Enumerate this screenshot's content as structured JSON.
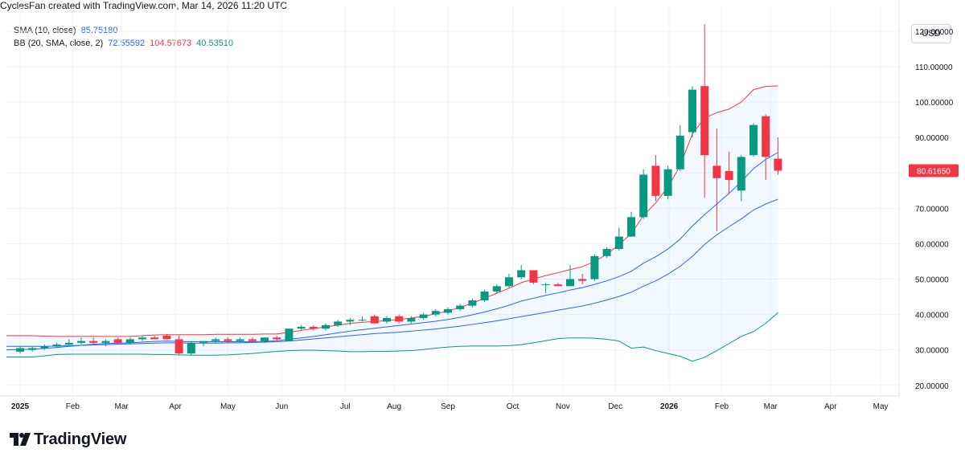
{
  "header": {
    "attribution": "CyclesFan created with TradingView.com, Mar 14, 2026 11:20 UTC"
  },
  "indicators": {
    "sma": {
      "name": "SMA (10, close)",
      "value": "85.75180",
      "color": "#2962ff"
    },
    "bb": {
      "name": "BB (20, SMA, close, 2)",
      "basis": "72.55592",
      "upper": "104.57673",
      "lower": "40.53510",
      "basis_color": "#2962ff",
      "upper_color": "#f23645",
      "lower_color": "#089981"
    }
  },
  "currency_button": "USD",
  "footer": {
    "brand": "TradingView"
  },
  "chart_data": {
    "type": "candlestick",
    "interval": "weekly",
    "ylim": [
      17,
      127
    ],
    "y_ticks": [
      20,
      30,
      40,
      50,
      60,
      70,
      80,
      90,
      100,
      110,
      120
    ],
    "y_tick_labels": [
      "20.00000",
      "30.00000",
      "40.00000",
      "50.00000",
      "60.00000",
      "70.00000",
      "80.00000",
      "90.00000",
      "100.00000",
      "110.00000",
      "120.00000"
    ],
    "x_ticks": [
      {
        "label": "2025",
        "week": 0,
        "bold": true
      },
      {
        "label": "Feb",
        "week": 4.3
      },
      {
        "label": "Mar",
        "week": 8.3
      },
      {
        "label": "Apr",
        "week": 12.7
      },
      {
        "label": "May",
        "week": 17.0
      },
      {
        "label": "Jun",
        "week": 21.4
      },
      {
        "label": "Jul",
        "week": 26.6
      },
      {
        "label": "Aug",
        "week": 30.6
      },
      {
        "label": "Sep",
        "week": 35.0
      },
      {
        "label": "Oct",
        "week": 40.3
      },
      {
        "label": "Nov",
        "week": 44.4
      },
      {
        "label": "Dec",
        "week": 48.7
      },
      {
        "label": "2026",
        "week": 53.1,
        "bold": true
      },
      {
        "label": "Feb",
        "week": 57.4
      },
      {
        "label": "Mar",
        "week": 61.4
      },
      {
        "label": "Apr",
        "week": 66.3
      },
      {
        "label": "May",
        "week": 70.4
      }
    ],
    "last_price": {
      "value": 80.6165,
      "label": "80.61650",
      "color": "#f23645"
    },
    "candles": [
      {
        "o": 29.5,
        "h": 31.0,
        "l": 29.0,
        "c": 30.5
      },
      {
        "o": 30.0,
        "h": 31.0,
        "l": 29.5,
        "c": 30.5
      },
      {
        "o": 30.5,
        "h": 31.5,
        "l": 30.0,
        "c": 31.0
      },
      {
        "o": 31.0,
        "h": 32.0,
        "l": 30.5,
        "c": 31.5
      },
      {
        "o": 31.5,
        "h": 33.0,
        "l": 31.0,
        "c": 32.0
      },
      {
        "o": 32.0,
        "h": 33.5,
        "l": 31.5,
        "c": 32.5
      },
      {
        "o": 32.5,
        "h": 33.5,
        "l": 31.5,
        "c": 32.0
      },
      {
        "o": 32.0,
        "h": 33.0,
        "l": 31.0,
        "c": 32.5
      },
      {
        "o": 33.0,
        "h": 33.5,
        "l": 31.5,
        "c": 32.0
      },
      {
        "o": 32.0,
        "h": 33.5,
        "l": 31.5,
        "c": 33.0
      },
      {
        "o": 33.0,
        "h": 34.0,
        "l": 32.5,
        "c": 33.5
      },
      {
        "o": 33.5,
        "h": 34.0,
        "l": 33.0,
        "c": 33.0
      },
      {
        "o": 34.0,
        "h": 34.5,
        "l": 33.0,
        "c": 33.0
      },
      {
        "o": 33.0,
        "h": 34.0,
        "l": 28.5,
        "c": 29.0
      },
      {
        "o": 29.0,
        "h": 32.5,
        "l": 28.5,
        "c": 32.0
      },
      {
        "o": 32.0,
        "h": 32.5,
        "l": 31.0,
        "c": 32.5
      },
      {
        "o": 32.5,
        "h": 33.5,
        "l": 32.0,
        "c": 33.0
      },
      {
        "o": 33.0,
        "h": 33.5,
        "l": 32.0,
        "c": 32.5
      },
      {
        "o": 32.5,
        "h": 33.5,
        "l": 32.0,
        "c": 33.0
      },
      {
        "o": 33.0,
        "h": 33.5,
        "l": 32.0,
        "c": 32.5
      },
      {
        "o": 32.5,
        "h": 33.5,
        "l": 32.0,
        "c": 33.5
      },
      {
        "o": 33.5,
        "h": 34.0,
        "l": 32.5,
        "c": 33.0
      },
      {
        "o": 32.5,
        "h": 36.0,
        "l": 32.5,
        "c": 36.0
      },
      {
        "o": 36.0,
        "h": 37.0,
        "l": 35.5,
        "c": 36.5
      },
      {
        "o": 36.5,
        "h": 37.0,
        "l": 35.5,
        "c": 36.0
      },
      {
        "o": 36.0,
        "h": 37.5,
        "l": 35.5,
        "c": 37.0
      },
      {
        "o": 37.0,
        "h": 38.5,
        "l": 36.5,
        "c": 38.0
      },
      {
        "o": 38.0,
        "h": 39.0,
        "l": 37.0,
        "c": 38.5
      },
      {
        "o": 38.5,
        "h": 39.5,
        "l": 38.0,
        "c": 38.5
      },
      {
        "o": 39.5,
        "h": 40.0,
        "l": 37.5,
        "c": 37.5
      },
      {
        "o": 38.0,
        "h": 39.5,
        "l": 37.5,
        "c": 39.0
      },
      {
        "o": 39.5,
        "h": 40.0,
        "l": 37.5,
        "c": 38.0
      },
      {
        "o": 38.0,
        "h": 39.5,
        "l": 37.5,
        "c": 39.0
      },
      {
        "o": 39.0,
        "h": 40.5,
        "l": 38.5,
        "c": 40.0
      },
      {
        "o": 40.0,
        "h": 41.5,
        "l": 39.5,
        "c": 41.0
      },
      {
        "o": 40.5,
        "h": 42.0,
        "l": 40.0,
        "c": 41.5
      },
      {
        "o": 41.5,
        "h": 43.0,
        "l": 41.0,
        "c": 42.5
      },
      {
        "o": 42.5,
        "h": 44.5,
        "l": 42.0,
        "c": 44.0
      },
      {
        "o": 44.0,
        "h": 47.0,
        "l": 43.5,
        "c": 46.5
      },
      {
        "o": 46.5,
        "h": 48.5,
        "l": 46.0,
        "c": 48.0
      },
      {
        "o": 48.0,
        "h": 51.5,
        "l": 47.5,
        "c": 50.5
      },
      {
        "o": 50.5,
        "h": 54.0,
        "l": 50.0,
        "c": 52.5
      },
      {
        "o": 52.5,
        "h": 52.5,
        "l": 48.5,
        "c": 49.0
      },
      {
        "o": 48.5,
        "h": 49.0,
        "l": 46.0,
        "c": 48.5
      },
      {
        "o": 48.5,
        "h": 49.0,
        "l": 48.0,
        "c": 48.0
      },
      {
        "o": 48.0,
        "h": 54.0,
        "l": 48.0,
        "c": 50.0
      },
      {
        "o": 50.0,
        "h": 51.5,
        "l": 48.5,
        "c": 49.5
      },
      {
        "o": 50.0,
        "h": 57.0,
        "l": 49.5,
        "c": 56.5
      },
      {
        "o": 56.5,
        "h": 59.0,
        "l": 56.0,
        "c": 58.5
      },
      {
        "o": 58.5,
        "h": 64.5,
        "l": 58.0,
        "c": 62.0
      },
      {
        "o": 62.0,
        "h": 69.0,
        "l": 62.0,
        "c": 67.5
      },
      {
        "o": 67.5,
        "h": 81.0,
        "l": 67.0,
        "c": 79.5
      },
      {
        "o": 82.0,
        "h": 85.0,
        "l": 72.0,
        "c": 73.5
      },
      {
        "o": 73.5,
        "h": 82.0,
        "l": 72.5,
        "c": 81.0
      },
      {
        "o": 81.0,
        "h": 93.5,
        "l": 80.5,
        "c": 90.5
      },
      {
        "o": 91.5,
        "h": 104.5,
        "l": 90.0,
        "c": 103.5
      },
      {
        "o": 104.5,
        "h": 122.0,
        "l": 73.0,
        "c": 85.0
      },
      {
        "o": 82.0,
        "h": 92.5,
        "l": 63.5,
        "c": 78.5
      },
      {
        "o": 80.5,
        "h": 86.0,
        "l": 74.0,
        "c": 78.0
      },
      {
        "o": 75.0,
        "h": 85.0,
        "l": 72.0,
        "c": 84.5
      },
      {
        "o": 85.0,
        "h": 94.0,
        "l": 84.5,
        "c": 93.5
      },
      {
        "o": 96.0,
        "h": 96.5,
        "l": 78.0,
        "c": 84.5
      },
      {
        "o": 84.0,
        "h": 90.0,
        "l": 79.5,
        "c": 80.6
      }
    ],
    "series": [
      {
        "name": "SMA (10, close)",
        "color": "#2962ff",
        "values": [
          30.0,
          30.2,
          30.4,
          30.7,
          31.0,
          31.3,
          31.6,
          31.8,
          31.9,
          32.0,
          32.2,
          32.4,
          32.5,
          32.4,
          32.3,
          32.3,
          32.3,
          32.3,
          32.3,
          32.3,
          32.4,
          32.6,
          33.0,
          33.4,
          33.8,
          34.3,
          34.8,
          35.3,
          35.7,
          36.1,
          36.5,
          36.9,
          37.3,
          37.7,
          38.1,
          38.6,
          39.2,
          39.9,
          40.7,
          41.6,
          42.6,
          43.8,
          44.6,
          45.4,
          46.1,
          46.9,
          47.6,
          48.5,
          49.5,
          50.7,
          52.2,
          54.5,
          56.3,
          58.5,
          61.3,
          65.0,
          68.2,
          71.2,
          74.2,
          77.5,
          81.2,
          83.8,
          85.75
        ]
      },
      {
        "name": "BB upper",
        "color": "#f23645",
        "values": [
          34.0,
          34.0,
          33.9,
          33.8,
          33.8,
          33.8,
          33.8,
          33.8,
          33.8,
          33.8,
          34.0,
          34.2,
          34.3,
          34.3,
          34.3,
          34.3,
          34.4,
          34.4,
          34.4,
          34.4,
          34.5,
          34.5,
          35.0,
          35.5,
          36.0,
          36.5,
          37.0,
          37.5,
          37.8,
          38.0,
          38.3,
          38.6,
          39.0,
          39.5,
          40.2,
          41.0,
          42.0,
          43.2,
          44.6,
          46.0,
          47.4,
          49.0,
          50.0,
          51.0,
          51.8,
          52.7,
          53.5,
          55.0,
          57.0,
          59.8,
          62.8,
          68.0,
          71.5,
          76.0,
          82.0,
          91.0,
          95.5,
          97.0,
          98.0,
          100.0,
          103.5,
          104.4,
          104.58
        ]
      },
      {
        "name": "BB basis",
        "color": "#2962ff",
        "values": [
          31.0,
          31.0,
          31.0,
          31.1,
          31.2,
          31.3,
          31.4,
          31.5,
          31.6,
          31.7,
          31.8,
          31.9,
          32.0,
          32.0,
          31.9,
          31.9,
          31.9,
          32.0,
          32.0,
          32.1,
          32.2,
          32.3,
          32.5,
          32.8,
          33.1,
          33.4,
          33.7,
          34.0,
          34.3,
          34.6,
          34.8,
          35.0,
          35.3,
          35.6,
          35.9,
          36.3,
          36.7,
          37.2,
          37.7,
          38.2,
          38.8,
          39.4,
          40.0,
          40.6,
          41.2,
          41.8,
          42.4,
          43.2,
          44.1,
          45.1,
          46.3,
          48.0,
          49.5,
          51.4,
          53.6,
          56.4,
          59.8,
          62.5,
          64.8,
          67.0,
          69.5,
          71.2,
          72.56
        ]
      },
      {
        "name": "BB lower",
        "color": "#089981",
        "values": [
          28.0,
          28.0,
          28.3,
          28.7,
          28.8,
          28.8,
          28.8,
          28.8,
          28.8,
          28.8,
          28.8,
          28.7,
          28.7,
          28.6,
          28.5,
          28.5,
          28.5,
          28.6,
          28.8,
          29.0,
          29.3,
          29.6,
          29.8,
          29.9,
          29.9,
          29.8,
          29.7,
          29.5,
          29.5,
          29.6,
          29.6,
          29.7,
          29.8,
          30.1,
          30.5,
          30.8,
          31.0,
          31.1,
          31.1,
          31.1,
          31.2,
          31.5,
          32.0,
          32.6,
          33.2,
          33.4,
          33.4,
          33.3,
          33.0,
          32.5,
          30.5,
          30.8,
          29.8,
          29.0,
          28.2,
          26.8,
          27.9,
          29.8,
          31.8,
          33.8,
          35.2,
          37.5,
          40.54
        ]
      }
    ]
  }
}
